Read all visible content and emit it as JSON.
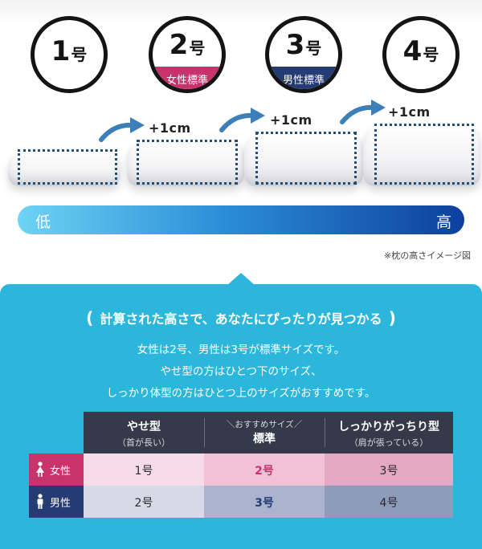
{
  "sizes": [
    {
      "num": "1",
      "unit": "号",
      "tag": ""
    },
    {
      "num": "2",
      "unit": "号",
      "tag": "女性標準"
    },
    {
      "num": "3",
      "unit": "号",
      "tag": "男性標準"
    },
    {
      "num": "4",
      "unit": "号",
      "tag": ""
    }
  ],
  "steps": [
    "+1cm",
    "+1cm",
    "+1cm"
  ],
  "gauge": {
    "low": "低",
    "high": "高"
  },
  "note": "※枕の高さイメージ図",
  "panel": {
    "headline_open": "(",
    "headline": "計算された高さで、あなたにぴったりが見つかる",
    "headline_close": ")",
    "lines": [
      "女性は2号、男性は3号が標準サイズです。",
      "やせ型の方はひとつ下のサイズ、",
      "しっかり体型の方はひとつ上のサイズがおすすめです。"
    ]
  },
  "table": {
    "columns": [
      {
        "title": "やせ型",
        "sub": "（首が長い）"
      },
      {
        "pre": "＼おすすめサイズ／",
        "title": "標準"
      },
      {
        "title": "しっかりがっちり型",
        "sub": "（肩が張っている）"
      }
    ],
    "rows": [
      {
        "label": "女性",
        "cells": [
          "1号",
          "2号",
          "3号"
        ]
      },
      {
        "label": "男性",
        "cells": [
          "2号",
          "3号",
          "4号"
        ]
      }
    ]
  },
  "colors": {
    "women": "#c8336e",
    "men": "#243b73",
    "panel": "#2db6dc",
    "outline": "#1f4e79"
  }
}
